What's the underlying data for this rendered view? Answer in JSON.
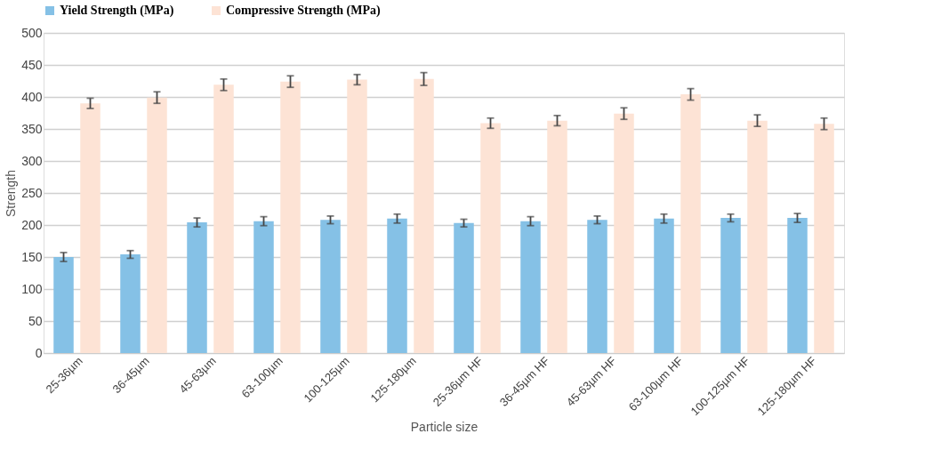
{
  "chart_data": {
    "type": "bar",
    "xlabel": "Particle size",
    "ylabel": "Strength",
    "categories": [
      "25-36µm",
      "36-45µm",
      "45-63µm",
      "63-100µm",
      "100-125µm",
      "125-180µm",
      "25-36µm HF",
      "36-45µm HF",
      "45-63µm HF",
      "63-100µm HF",
      "100-125µm HF",
      "125-180µm HF"
    ],
    "series": [
      {
        "name": "Yield Strength (MPa)",
        "color": "#85c1e6",
        "values": [
          150,
          154,
          204,
          206,
          208,
          210,
          203,
          206,
          208,
          210,
          211,
          211
        ],
        "errors": [
          7,
          6,
          7,
          7,
          6,
          7,
          6,
          7,
          6,
          7,
          6,
          7
        ]
      },
      {
        "name": "Compressive Strength (MPa)",
        "color": "#fde3d5",
        "values": [
          390,
          399,
          419,
          424,
          427,
          428,
          359,
          363,
          374,
          404,
          363,
          358
        ],
        "errors": [
          8,
          9,
          9,
          9,
          8,
          10,
          8,
          8,
          9,
          9,
          9,
          9
        ]
      }
    ],
    "ylim": [
      0,
      500
    ],
    "yticks": [
      0,
      50,
      100,
      150,
      200,
      250,
      300,
      350,
      400,
      450,
      500
    ],
    "grid": "y",
    "legend": "top"
  }
}
